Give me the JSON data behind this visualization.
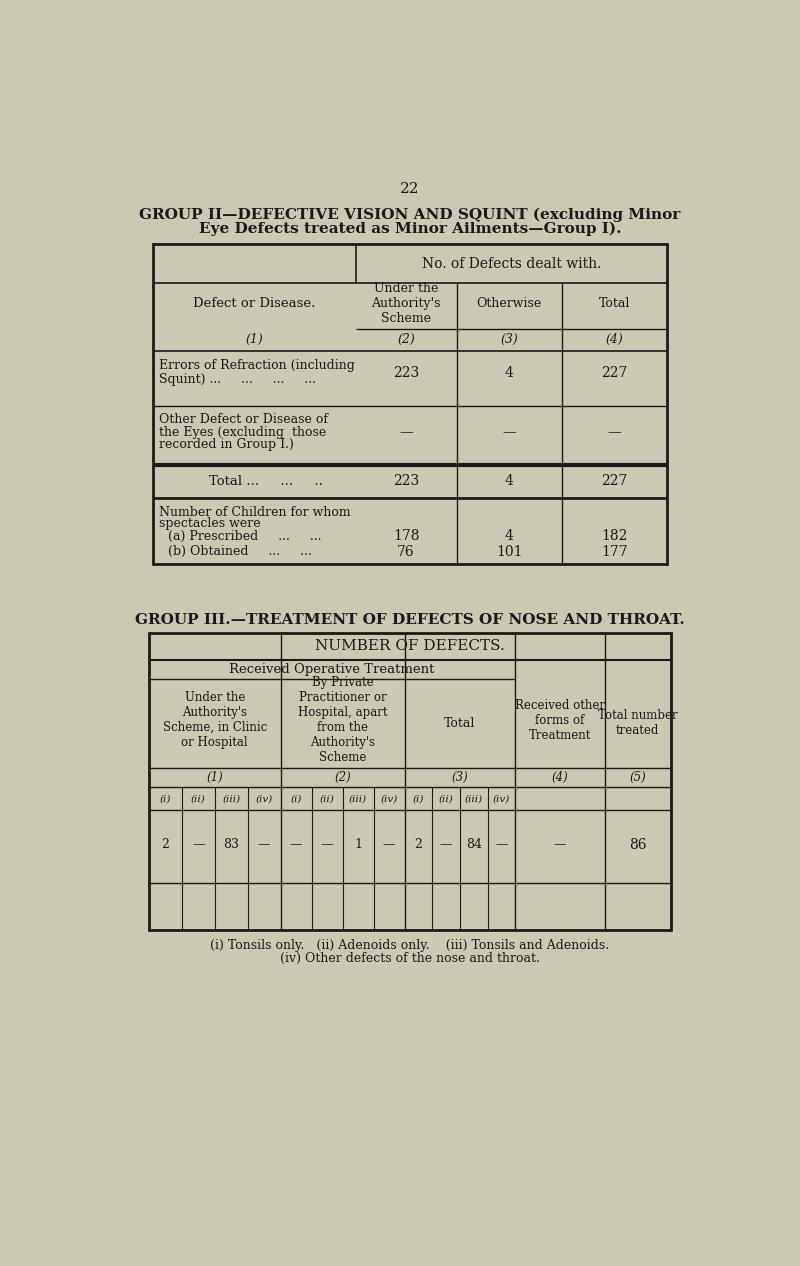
{
  "bg_color": "#cbc9b4",
  "text_color": "#1a1a1a",
  "page_number": "22",
  "group2_title_line1": "GROUP II—DEFECTIVE VISION AND SQUINT (excluding Minor",
  "group2_title_line2": "Eye Defects treated as Minor Ailments—Group I).",
  "group2_header_main": "No. of Defects dealt with.",
  "group2_col1_header": "Defect or Disease.",
  "group2_col2_header": "Under the\nAuthority's\nScheme",
  "group2_col3_header": "Otherwise",
  "group2_col4_header": "Total",
  "group2_col_nums": [
    "(1)",
    "(2)",
    "(3)",
    "(4)"
  ],
  "group2_row1_line1": "Errors of Refraction (including",
  "group2_row1_line2": "Squint) ...     ...     ...     ...",
  "group2_row1_vals": [
    "223",
    "4",
    "227"
  ],
  "group2_row2_line1": "Other Defect or Disease of",
  "group2_row2_line2": "the Eyes (excluding  those",
  "group2_row2_line3": "recorded in Group I.)",
  "group2_row2_vals": [
    "—",
    "—",
    "—"
  ],
  "group2_total_label": "Total ...     ...     ..",
  "group2_total_vals": [
    "223",
    "4",
    "227"
  ],
  "group2_spec_line1": "Number of Children for whom",
  "group2_spec_line2": "spectacles were",
  "group2_prescribed_label": "(a) Prescribed     ...     ...",
  "group2_prescribed_vals": [
    "178",
    "4",
    "182"
  ],
  "group2_obtained_label": "(b) Obtained     ...     ...",
  "group2_obtained_vals": [
    "76",
    "101",
    "177"
  ],
  "group3_title": "GROUP III.—TREATMENT OF DEFECTS OF NOSE AND THROAT.",
  "group3_main_header": "NUMBER OF DEFECTS.",
  "group3_sub_header": "Received Operative Treatment",
  "group3_col1_header": "Under the\nAuthority's\nScheme, in Clinic\nor Hospital",
  "group3_col2_header": "By Private\nPractitioner or\nHospital, apart\nfrom the\nAuthority's\nScheme",
  "group3_col3_header": "Total",
  "group3_col4_header": "Received other\nforms of\nTreatment",
  "group3_col5_header": "Total number\ntreated",
  "group3_col_nums": [
    "(1)",
    "(2)",
    "(3)",
    "(4)",
    "(5)"
  ],
  "group3_sub_cols": [
    "(i)",
    "(ii)",
    "(iii)",
    "(iv)"
  ],
  "group3_col1_vals": [
    "2",
    "—",
    "83",
    "—"
  ],
  "group3_col2_vals": [
    "—",
    "—",
    "1",
    "—"
  ],
  "group3_col3_vals": [
    "2",
    "—",
    "84",
    "—"
  ],
  "group3_col4_val": "—",
  "group3_col5_val": "86",
  "footnote_line1": "(i) Tonsils only.   (ii) Adenoids only.    (iii) Tonsils and Adenoids.",
  "footnote_line2": "(iv) Other defects of the nose and throat."
}
